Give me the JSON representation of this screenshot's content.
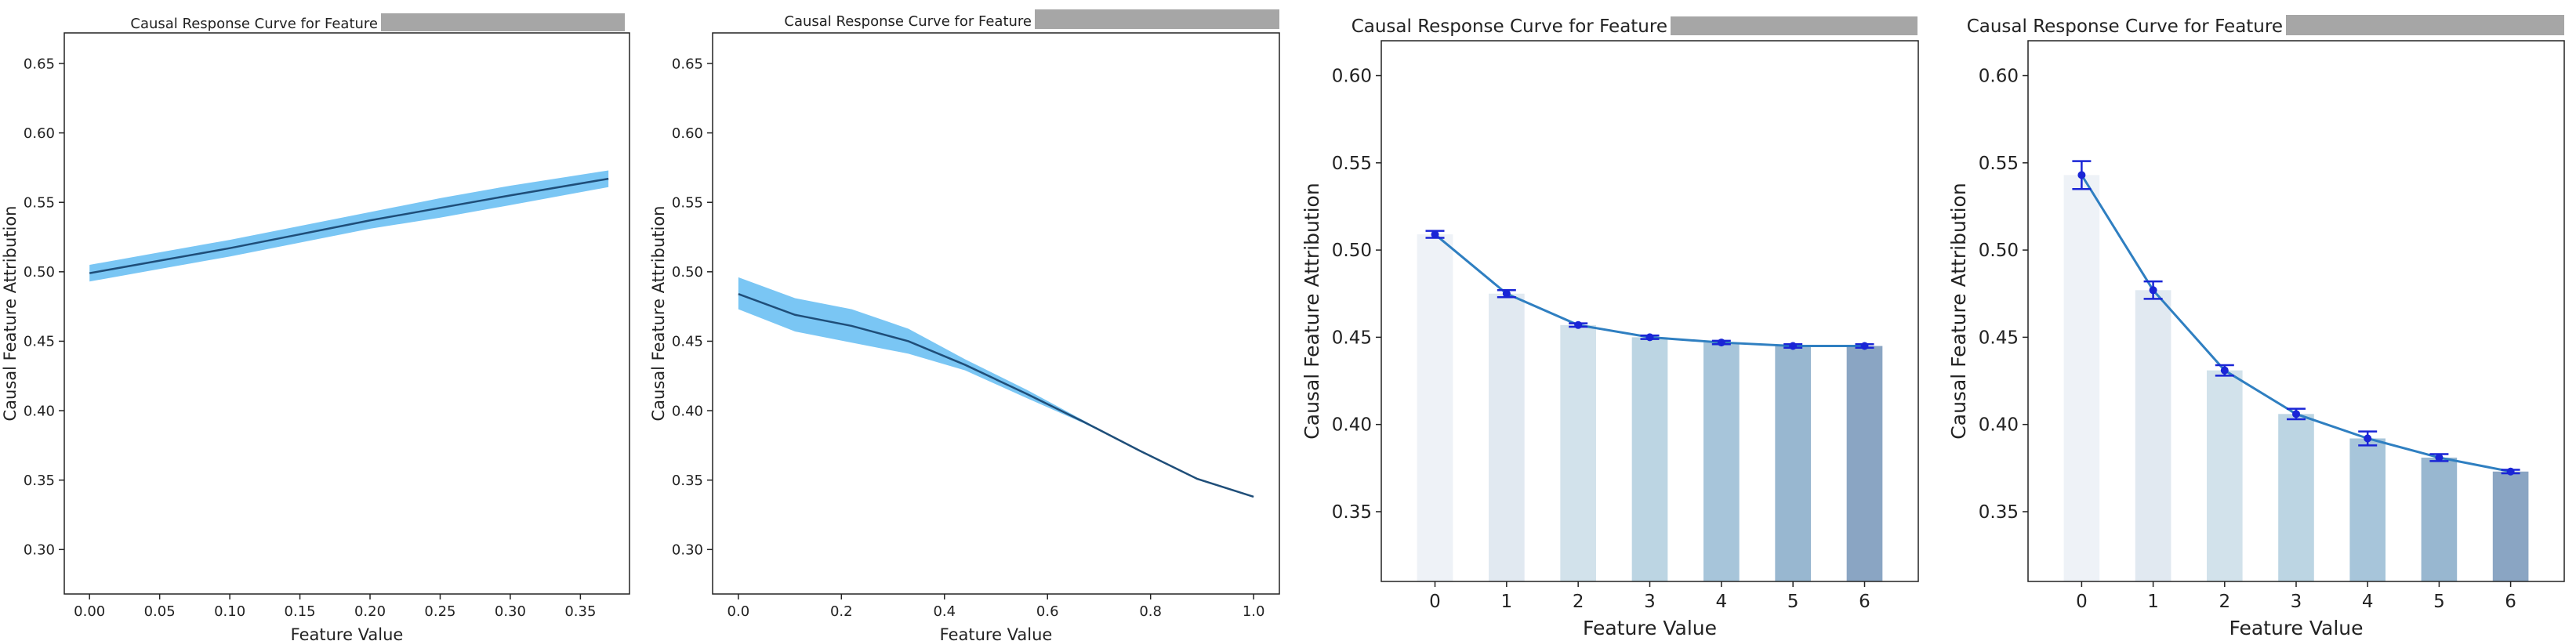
{
  "redaction_color": "#a6a6a6",
  "chart_data": [
    {
      "type": "line",
      "title": "Causal Response Curve for Feature",
      "xlabel": "Feature Value",
      "ylabel": "Causal Feature Attribution",
      "xlim": [
        -0.018,
        0.385
      ],
      "ylim": [
        0.268,
        0.672
      ],
      "xticks": [
        0.0,
        0.05,
        0.1,
        0.15,
        0.2,
        0.25,
        0.3,
        0.35
      ],
      "xtick_labels": [
        "0.00",
        "0.05",
        "0.10",
        "0.15",
        "0.20",
        "0.25",
        "0.30",
        "0.35"
      ],
      "yticks": [
        0.3,
        0.35,
        0.4,
        0.45,
        0.5,
        0.55,
        0.6,
        0.65
      ],
      "ytick_labels": [
        "0.30",
        "0.35",
        "0.40",
        "0.45",
        "0.50",
        "0.55",
        "0.60",
        "0.65"
      ],
      "grid": false,
      "line_color": "#1f4e79",
      "band_color": "#4db3f0",
      "x": [
        0.0,
        0.05,
        0.1,
        0.15,
        0.2,
        0.25,
        0.3,
        0.37
      ],
      "y": [
        0.499,
        0.508,
        0.517,
        0.527,
        0.537,
        0.546,
        0.555,
        0.567
      ],
      "lower": [
        0.493,
        0.502,
        0.511,
        0.521,
        0.531,
        0.539,
        0.548,
        0.561
      ],
      "upper": [
        0.505,
        0.514,
        0.523,
        0.533,
        0.543,
        0.553,
        0.562,
        0.573
      ]
    },
    {
      "type": "line",
      "title": "Causal Response Curve for Feature",
      "xlabel": "Feature Value",
      "ylabel": "Causal Feature Attribution",
      "xlim": [
        -0.05,
        1.05
      ],
      "ylim": [
        0.268,
        0.672
      ],
      "xticks": [
        0.0,
        0.2,
        0.4,
        0.6,
        0.8,
        1.0
      ],
      "xtick_labels": [
        "0.0",
        "0.2",
        "0.4",
        "0.6",
        "0.8",
        "1.0"
      ],
      "yticks": [
        0.3,
        0.35,
        0.4,
        0.45,
        0.5,
        0.55,
        0.6,
        0.65
      ],
      "ytick_labels": [
        "0.30",
        "0.35",
        "0.40",
        "0.45",
        "0.50",
        "0.55",
        "0.60",
        "0.65"
      ],
      "grid": false,
      "line_color": "#1f4e79",
      "band_color": "#4db3f0",
      "x": [
        0.0,
        0.11,
        0.22,
        0.33,
        0.44,
        0.56,
        0.67,
        0.78,
        0.89,
        1.0
      ],
      "y": [
        0.484,
        0.469,
        0.461,
        0.45,
        0.433,
        0.412,
        0.392,
        0.371,
        0.351,
        0.338
      ],
      "lower": [
        0.473,
        0.457,
        0.449,
        0.441,
        0.429,
        0.409,
        0.391,
        0.371,
        0.351,
        0.338
      ],
      "upper": [
        0.496,
        0.481,
        0.473,
        0.459,
        0.437,
        0.415,
        0.393,
        0.371,
        0.351,
        0.338
      ]
    },
    {
      "type": "bar",
      "title": "Causal Response Curve for Feature",
      "xlabel": "Feature Value",
      "ylabel": "Causal Feature Attribution",
      "ylim": [
        0.31,
        0.62
      ],
      "categories": [
        "0",
        "1",
        "2",
        "3",
        "4",
        "5",
        "6"
      ],
      "yticks": [
        0.35,
        0.4,
        0.45,
        0.5,
        0.55,
        0.6
      ],
      "ytick_labels": [
        "0.35",
        "0.40",
        "0.45",
        "0.50",
        "0.55",
        "0.60"
      ],
      "grid": false,
      "bar_colors": [
        "#eef2f7",
        "#e1e9f1",
        "#d2e2eb",
        "#bcd5e3",
        "#a7c5da",
        "#98b7d0",
        "#8aa5c3"
      ],
      "line_color": "#2f7fc1",
      "marker_color": "#1a25d6",
      "values": [
        0.509,
        0.475,
        0.457,
        0.45,
        0.447,
        0.445,
        0.445
      ],
      "errors": [
        0.002,
        0.002,
        0.001,
        0.001,
        0.001,
        0.001,
        0.001
      ]
    },
    {
      "type": "bar",
      "title": "Causal Response Curve for Feature",
      "xlabel": "Feature Value",
      "ylabel": "Causal Feature Attribution",
      "ylim": [
        0.31,
        0.62
      ],
      "categories": [
        "0",
        "1",
        "2",
        "3",
        "4",
        "5",
        "6"
      ],
      "yticks": [
        0.35,
        0.4,
        0.45,
        0.5,
        0.55,
        0.6
      ],
      "ytick_labels": [
        "0.35",
        "0.40",
        "0.45",
        "0.50",
        "0.55",
        "0.60"
      ],
      "grid": false,
      "bar_colors": [
        "#eef2f7",
        "#e1e9f1",
        "#d2e2eb",
        "#bcd5e3",
        "#a7c5da",
        "#98b7d0",
        "#8aa5c3"
      ],
      "line_color": "#2f7fc1",
      "marker_color": "#1a25d6",
      "values": [
        0.543,
        0.477,
        0.431,
        0.406,
        0.392,
        0.381,
        0.373
      ],
      "errors": [
        0.008,
        0.005,
        0.003,
        0.003,
        0.004,
        0.002,
        0.001
      ]
    }
  ]
}
